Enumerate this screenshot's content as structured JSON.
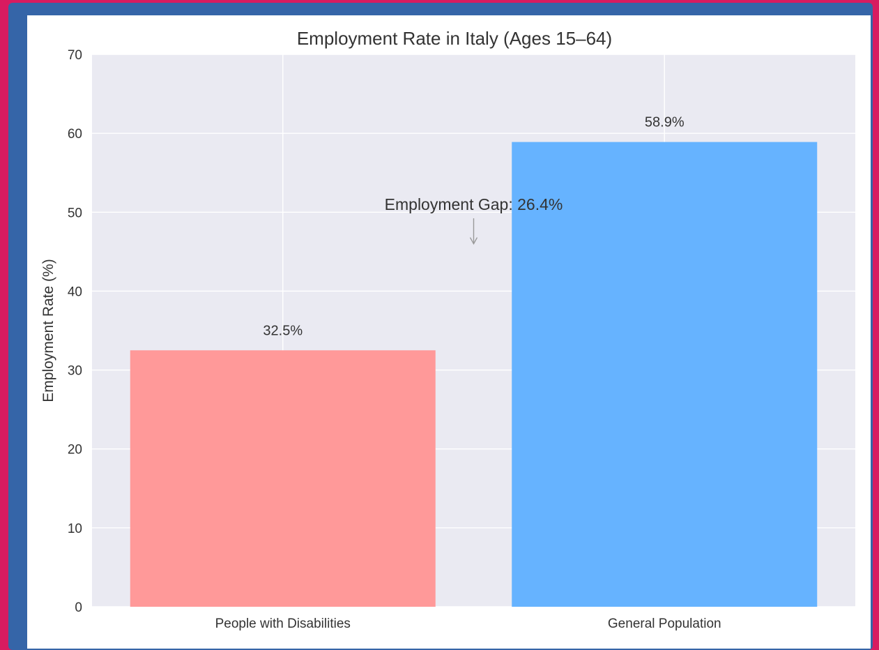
{
  "chart_data": {
    "type": "bar",
    "title": "Employment Rate in Italy (Ages 15–64)",
    "xlabel": "",
    "ylabel": "Employment Rate (%)",
    "ylim": [
      0,
      70
    ],
    "yticks": [
      "0",
      "10",
      "20",
      "30",
      "40",
      "50",
      "60",
      "70"
    ],
    "categories": [
      "People with Disabilities",
      "General Population"
    ],
    "values": [
      32.5,
      58.9
    ],
    "data_labels": [
      "32.5%",
      "58.9%"
    ],
    "colors": [
      "#ff9999",
      "#66b3ff"
    ],
    "grid": true,
    "background": "#eaeaf2",
    "annotation": {
      "text": "Employment Gap: 26.4%",
      "arrow_target_y": 46,
      "text_y": 51
    }
  }
}
